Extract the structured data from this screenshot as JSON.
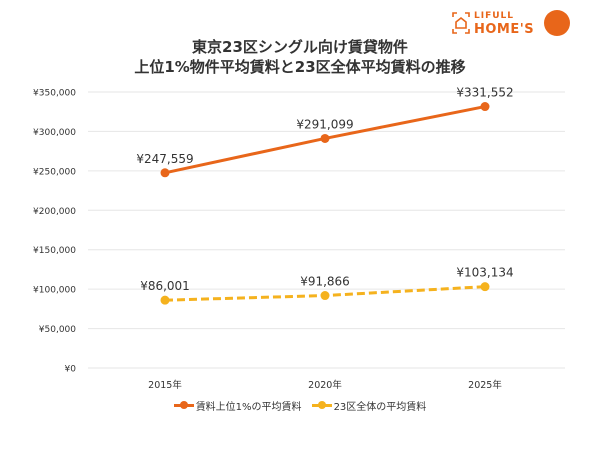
{
  "title_line1": "東京23区シングル向け賃貸物件",
  "title_line2": "上位1%物件平均賃料と23区全体平均賃料の推移",
  "logo": {
    "line1": "LIFULL",
    "line2": "HOME'S"
  },
  "chart_data": {
    "type": "line",
    "title": "東京23区シングル向け賃貸物件 上位1%物件平均賃料と23区全体平均賃料の推移",
    "categories": [
      "2015年",
      "2020年",
      "2025年"
    ],
    "ylim": [
      0,
      350000
    ],
    "yticks": [
      0,
      50000,
      100000,
      150000,
      200000,
      250000,
      300000,
      350000
    ],
    "ytick_labels": [
      "¥0",
      "¥50,000",
      "¥100,000",
      "¥150,000",
      "¥200,000",
      "¥250,000",
      "¥300,000",
      "¥350,000"
    ],
    "grid": true,
    "legend_position": "bottom",
    "series": [
      {
        "name": "賃料上位1%の平均賃料",
        "values": [
          247559,
          291099,
          331552
        ],
        "labels": [
          "¥247,559",
          "¥291,099",
          "¥331,552"
        ],
        "color": "#e8661a",
        "dash": false
      },
      {
        "name": "23区全体の平均賃料",
        "values": [
          86001,
          91866,
          103134
        ],
        "labels": [
          "¥86,001",
          "¥91,866",
          "¥103,134"
        ],
        "color": "#f5b21e",
        "dash": true
      }
    ]
  }
}
